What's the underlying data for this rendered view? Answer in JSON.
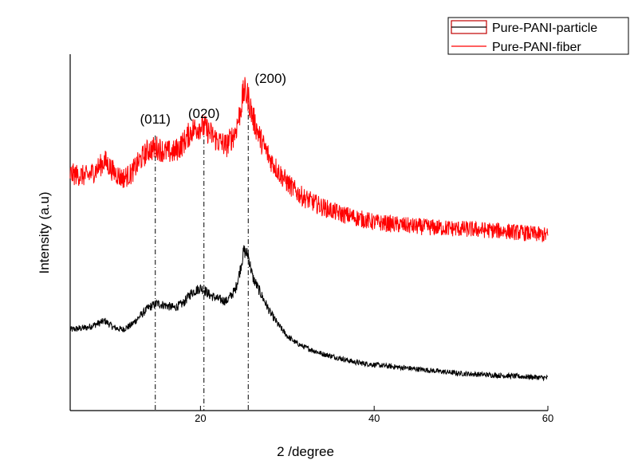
{
  "chart_data": {
    "type": "line",
    "xlabel": "2 /degree",
    "ylabel": "Intensity (a.u)",
    "xlim": [
      5,
      60
    ],
    "x_ticks": [
      20,
      40,
      60
    ],
    "y_ticks_shown": false,
    "grid": false,
    "legend_position": "top-right",
    "series": [
      {
        "name": "Pure-PANI-particle",
        "color": "#000000",
        "noisy": true,
        "x": [
          5,
          7,
          9,
          10,
          11,
          12,
          13,
          14,
          15,
          16,
          17,
          18,
          19,
          20,
          20.5,
          21,
          22,
          23,
          24,
          24.5,
          25,
          25.5,
          26,
          27,
          28,
          29,
          30,
          31,
          32,
          34,
          36,
          38,
          40,
          45,
          50,
          55,
          60
        ],
        "y": [
          2.6,
          2.7,
          3.0,
          2.7,
          2.6,
          2.8,
          3.2,
          3.6,
          3.8,
          3.7,
          3.6,
          3.8,
          4.3,
          4.5,
          4.4,
          4.2,
          4.0,
          3.9,
          4.4,
          5.2,
          6.2,
          6.0,
          5.0,
          4.2,
          3.4,
          2.8,
          2.3,
          2.0,
          1.8,
          1.5,
          1.3,
          1.1,
          1.0,
          0.8,
          0.6,
          0.5,
          0.4
        ]
      },
      {
        "name": "Pure-PANI-fiber",
        "color": "#ff0000",
        "noisy": true,
        "x": [
          5,
          7,
          8,
          9,
          10,
          11,
          12,
          13,
          14,
          15,
          16,
          17,
          18,
          19,
          20,
          20.5,
          21,
          22,
          23,
          24,
          24.5,
          25,
          25.5,
          26,
          27,
          28,
          29,
          30,
          31,
          32,
          34,
          36,
          38,
          40,
          45,
          50,
          55,
          60
        ],
        "y": [
          9.7,
          9.6,
          9.9,
          10.3,
          9.8,
          9.5,
          9.7,
          10.3,
          10.8,
          10.9,
          10.7,
          10.7,
          11.1,
          11.7,
          11.9,
          11.8,
          11.6,
          11.2,
          11.0,
          11.6,
          12.4,
          13.5,
          13.2,
          12.3,
          11.2,
          10.4,
          9.8,
          9.3,
          8.9,
          8.6,
          8.2,
          7.9,
          7.7,
          7.5,
          7.3,
          7.2,
          7.1,
          6.9
        ]
      }
    ],
    "annotations": [
      {
        "text": "(011)",
        "x": 14.8
      },
      {
        "text": "(020)",
        "x": 20.4
      },
      {
        "text": "(200)",
        "x": 25.5
      }
    ]
  },
  "colors": {
    "axis": "#000000",
    "guide": "#000000"
  }
}
